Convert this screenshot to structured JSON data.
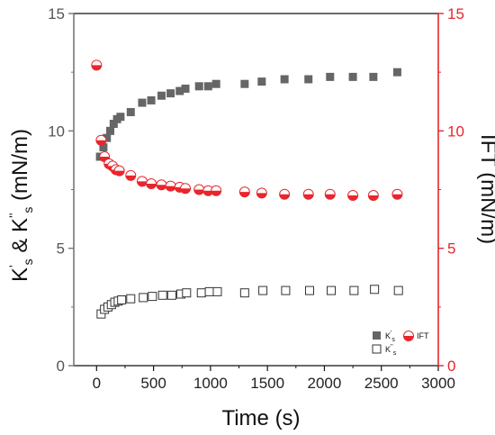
{
  "chart_data": {
    "type": "scatter",
    "xlabel": "Time (s)",
    "ylabel_left": {
      "main": "K",
      "sup1": "'",
      "sub1": "s",
      "mid": " & K",
      "sup2": "''",
      "sub2": "s",
      "tail": " (mN/m)"
    },
    "ylabel_right": "IFT (mN/m)",
    "xlim": [
      -200,
      3000
    ],
    "ylim_left": [
      0,
      15
    ],
    "ylim_right": [
      0,
      15
    ],
    "x_ticks": [
      0,
      500,
      1000,
      1500,
      2000,
      2500,
      3000
    ],
    "y_ticks_left": [
      0,
      5,
      10,
      15
    ],
    "y_ticks_right": [
      0,
      5,
      10,
      15
    ],
    "colors": {
      "axis_left": "#777777",
      "axis_right": "#e8262d",
      "filled": "#666666",
      "ift": "#e8262d"
    },
    "legend_position": "bottom-right",
    "series": [
      {
        "name": "Ks'",
        "legend": {
          "base": "K",
          "sup": "'",
          "sub": "s"
        },
        "marker": "filled-square",
        "axis": "left",
        "x": [
          30,
          60,
          90,
          120,
          150,
          180,
          210,
          300,
          400,
          480,
          570,
          650,
          730,
          780,
          900,
          980,
          1050,
          1300,
          1450,
          1650,
          1860,
          2050,
          2250,
          2430,
          2640
        ],
        "y": [
          8.9,
          9.3,
          9.7,
          10.0,
          10.3,
          10.5,
          10.6,
          10.8,
          11.2,
          11.3,
          11.5,
          11.6,
          11.7,
          11.8,
          11.9,
          11.9,
          12.0,
          12.0,
          12.1,
          12.2,
          12.2,
          12.3,
          12.3,
          12.3,
          12.5
        ]
      },
      {
        "name": "Ks''",
        "legend": {
          "base": "K",
          "sup": "''",
          "sub": "s"
        },
        "marker": "open-square",
        "axis": "left",
        "x": [
          40,
          70,
          100,
          130,
          160,
          190,
          220,
          300,
          410,
          490,
          580,
          660,
          740,
          790,
          920,
          990,
          1060,
          1300,
          1460,
          1660,
          1870,
          2060,
          2260,
          2440,
          2650
        ],
        "y": [
          2.2,
          2.4,
          2.5,
          2.6,
          2.7,
          2.75,
          2.8,
          2.85,
          2.9,
          2.95,
          3.0,
          3.0,
          3.05,
          3.1,
          3.1,
          3.15,
          3.15,
          3.1,
          3.2,
          3.2,
          3.2,
          3.2,
          3.2,
          3.25,
          3.2
        ]
      },
      {
        "name": "IFT",
        "legend": {
          "base": "IFT"
        },
        "marker": "half-circle",
        "axis": "right",
        "x": [
          0,
          40,
          70,
          110,
          140,
          170,
          200,
          300,
          400,
          480,
          570,
          650,
          730,
          780,
          900,
          980,
          1050,
          1300,
          1450,
          1650,
          1860,
          2050,
          2250,
          2430,
          2640
        ],
        "y": [
          12.8,
          9.6,
          8.9,
          8.6,
          8.5,
          8.35,
          8.3,
          8.1,
          7.85,
          7.75,
          7.7,
          7.65,
          7.6,
          7.55,
          7.5,
          7.45,
          7.45,
          7.4,
          7.35,
          7.3,
          7.3,
          7.3,
          7.25,
          7.25,
          7.3
        ]
      }
    ]
  }
}
